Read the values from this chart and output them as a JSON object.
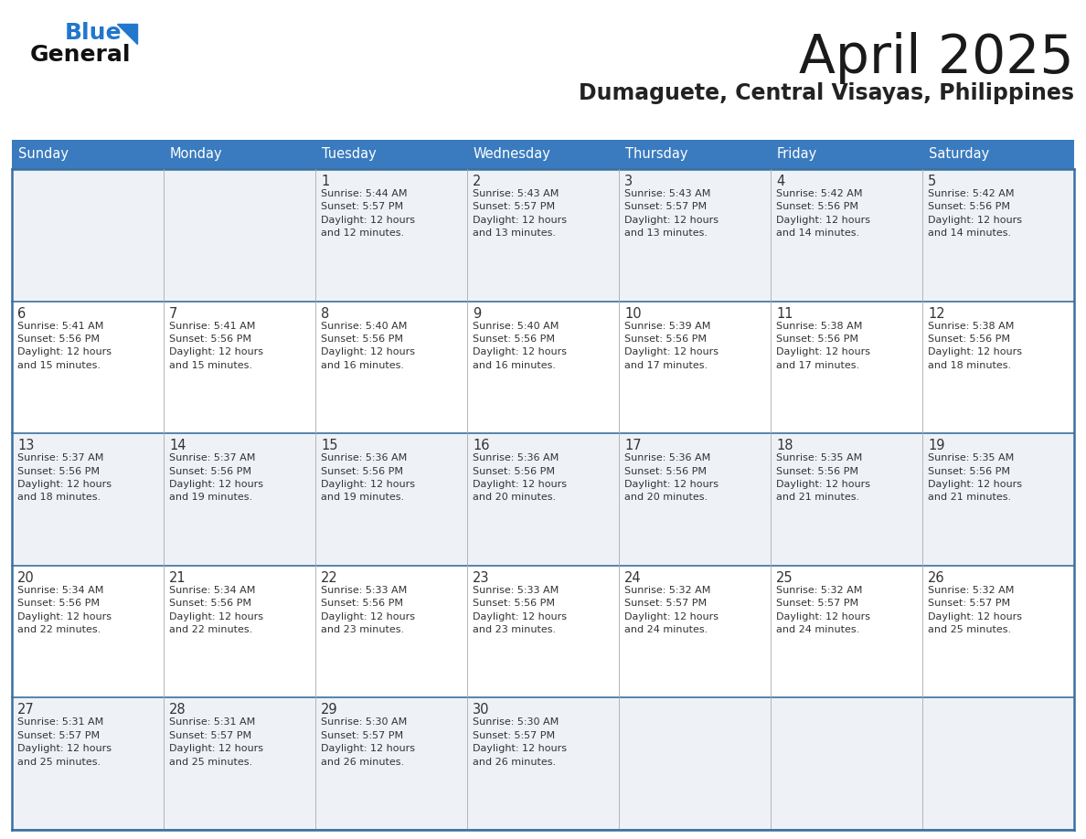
{
  "title": "April 2025",
  "subtitle": "Dumaguete, Central Visayas, Philippines",
  "days_of_week": [
    "Sunday",
    "Monday",
    "Tuesday",
    "Wednesday",
    "Thursday",
    "Friday",
    "Saturday"
  ],
  "header_bg": "#3a7bbf",
  "header_text": "#ffffff",
  "row_bg_even": "#eef2f7",
  "row_bg_odd": "#ffffff",
  "cell_border_color": "#3a6fa0",
  "title_color": "#1a1a1a",
  "subtitle_color": "#222222",
  "day_number_color": "#333333",
  "cell_text_color": "#333333",
  "logo_general_color": "#111111",
  "logo_blue_color": "#2277cc",
  "logo_triangle_color": "#2277cc",
  "calendar_data": [
    [
      {
        "day": null,
        "info": null
      },
      {
        "day": null,
        "info": null
      },
      {
        "day": 1,
        "info": "Sunrise: 5:44 AM\nSunset: 5:57 PM\nDaylight: 12 hours\nand 12 minutes."
      },
      {
        "day": 2,
        "info": "Sunrise: 5:43 AM\nSunset: 5:57 PM\nDaylight: 12 hours\nand 13 minutes."
      },
      {
        "day": 3,
        "info": "Sunrise: 5:43 AM\nSunset: 5:57 PM\nDaylight: 12 hours\nand 13 minutes."
      },
      {
        "day": 4,
        "info": "Sunrise: 5:42 AM\nSunset: 5:56 PM\nDaylight: 12 hours\nand 14 minutes."
      },
      {
        "day": 5,
        "info": "Sunrise: 5:42 AM\nSunset: 5:56 PM\nDaylight: 12 hours\nand 14 minutes."
      }
    ],
    [
      {
        "day": 6,
        "info": "Sunrise: 5:41 AM\nSunset: 5:56 PM\nDaylight: 12 hours\nand 15 minutes."
      },
      {
        "day": 7,
        "info": "Sunrise: 5:41 AM\nSunset: 5:56 PM\nDaylight: 12 hours\nand 15 minutes."
      },
      {
        "day": 8,
        "info": "Sunrise: 5:40 AM\nSunset: 5:56 PM\nDaylight: 12 hours\nand 16 minutes."
      },
      {
        "day": 9,
        "info": "Sunrise: 5:40 AM\nSunset: 5:56 PM\nDaylight: 12 hours\nand 16 minutes."
      },
      {
        "day": 10,
        "info": "Sunrise: 5:39 AM\nSunset: 5:56 PM\nDaylight: 12 hours\nand 17 minutes."
      },
      {
        "day": 11,
        "info": "Sunrise: 5:38 AM\nSunset: 5:56 PM\nDaylight: 12 hours\nand 17 minutes."
      },
      {
        "day": 12,
        "info": "Sunrise: 5:38 AM\nSunset: 5:56 PM\nDaylight: 12 hours\nand 18 minutes."
      }
    ],
    [
      {
        "day": 13,
        "info": "Sunrise: 5:37 AM\nSunset: 5:56 PM\nDaylight: 12 hours\nand 18 minutes."
      },
      {
        "day": 14,
        "info": "Sunrise: 5:37 AM\nSunset: 5:56 PM\nDaylight: 12 hours\nand 19 minutes."
      },
      {
        "day": 15,
        "info": "Sunrise: 5:36 AM\nSunset: 5:56 PM\nDaylight: 12 hours\nand 19 minutes."
      },
      {
        "day": 16,
        "info": "Sunrise: 5:36 AM\nSunset: 5:56 PM\nDaylight: 12 hours\nand 20 minutes."
      },
      {
        "day": 17,
        "info": "Sunrise: 5:36 AM\nSunset: 5:56 PM\nDaylight: 12 hours\nand 20 minutes."
      },
      {
        "day": 18,
        "info": "Sunrise: 5:35 AM\nSunset: 5:56 PM\nDaylight: 12 hours\nand 21 minutes."
      },
      {
        "day": 19,
        "info": "Sunrise: 5:35 AM\nSunset: 5:56 PM\nDaylight: 12 hours\nand 21 minutes."
      }
    ],
    [
      {
        "day": 20,
        "info": "Sunrise: 5:34 AM\nSunset: 5:56 PM\nDaylight: 12 hours\nand 22 minutes."
      },
      {
        "day": 21,
        "info": "Sunrise: 5:34 AM\nSunset: 5:56 PM\nDaylight: 12 hours\nand 22 minutes."
      },
      {
        "day": 22,
        "info": "Sunrise: 5:33 AM\nSunset: 5:56 PM\nDaylight: 12 hours\nand 23 minutes."
      },
      {
        "day": 23,
        "info": "Sunrise: 5:33 AM\nSunset: 5:56 PM\nDaylight: 12 hours\nand 23 minutes."
      },
      {
        "day": 24,
        "info": "Sunrise: 5:32 AM\nSunset: 5:57 PM\nDaylight: 12 hours\nand 24 minutes."
      },
      {
        "day": 25,
        "info": "Sunrise: 5:32 AM\nSunset: 5:57 PM\nDaylight: 12 hours\nand 24 minutes."
      },
      {
        "day": 26,
        "info": "Sunrise: 5:32 AM\nSunset: 5:57 PM\nDaylight: 12 hours\nand 25 minutes."
      }
    ],
    [
      {
        "day": 27,
        "info": "Sunrise: 5:31 AM\nSunset: 5:57 PM\nDaylight: 12 hours\nand 25 minutes."
      },
      {
        "day": 28,
        "info": "Sunrise: 5:31 AM\nSunset: 5:57 PM\nDaylight: 12 hours\nand 25 minutes."
      },
      {
        "day": 29,
        "info": "Sunrise: 5:30 AM\nSunset: 5:57 PM\nDaylight: 12 hours\nand 26 minutes."
      },
      {
        "day": 30,
        "info": "Sunrise: 5:30 AM\nSunset: 5:57 PM\nDaylight: 12 hours\nand 26 minutes."
      },
      {
        "day": null,
        "info": null
      },
      {
        "day": null,
        "info": null
      },
      {
        "day": null,
        "info": null
      }
    ]
  ]
}
